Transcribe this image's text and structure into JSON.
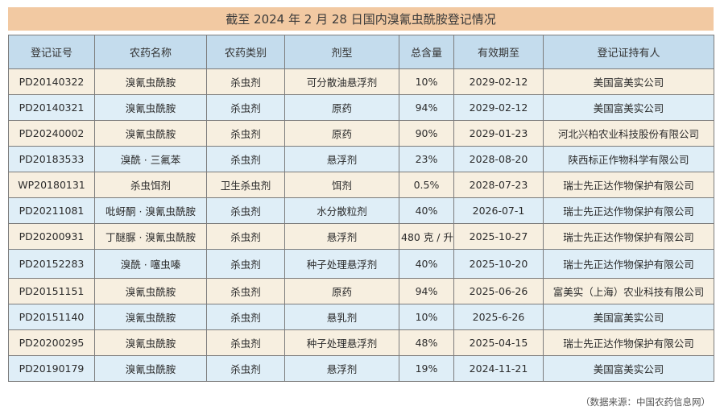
{
  "title": "截至 2024 年 2 月 28 日国内溴氰虫酰胺登记情况",
  "columns": [
    "登记证号",
    "农药名称",
    "农药类别",
    "剂型",
    "总含量",
    "有效期至",
    "登记证持有人"
  ],
  "rows": [
    [
      "PD20140322",
      "溴氰虫酰胺",
      "杀虫剂",
      "可分散油悬浮剂",
      "10%",
      "2029-02-12",
      "美国富美实公司"
    ],
    [
      "PD20140321",
      "溴氰虫酰胺",
      "杀虫剂",
      "原药",
      "94%",
      "2029-02-12",
      "美国富美实公司"
    ],
    [
      "PD20240002",
      "溴氰虫酰胺",
      "杀虫剂",
      "原药",
      "90%",
      "2029-01-23",
      "河北兴柏农业科技股份有限公司"
    ],
    [
      "PD20183533",
      "溴酰 · 三氟苯",
      "杀虫剂",
      "悬浮剂",
      "23%",
      "2028-08-20",
      "陕西标正作物科学有限公司"
    ],
    [
      "WP20180131",
      "杀虫饵剂",
      "卫生杀虫剂",
      "饵剂",
      "0.5%",
      "2028-07-23",
      "瑞士先正达作物保护有限公司"
    ],
    [
      "PD20211081",
      "吡蚜酮 · 溴氰虫酰胺",
      "杀虫剂",
      "水分散粒剂",
      "40%",
      "2026-07-1",
      "瑞士先正达作物保护有限公司"
    ],
    [
      "PD20200931",
      "丁醚脲 · 溴氰虫酰胺",
      "杀虫剂",
      "悬浮剂",
      "480 克 / 升",
      "2025-10-27",
      "瑞士先正达作物保护有限公司"
    ],
    [
      "PD20152283",
      "溴酰 · 噻虫嗪",
      "杀虫剂",
      "种子处理悬浮剂",
      "40%",
      "2025-10-20",
      "瑞士先正达作物保护有限公司"
    ],
    [
      "PD20151151",
      "溴氰虫酰胺",
      "杀虫剂",
      "原药",
      "94%",
      "2025-06-26",
      "富美实（上海）农业科技有限公司"
    ],
    [
      "PD20151140",
      "溴氰虫酰胺",
      "杀虫剂",
      "悬乳剂",
      "10%",
      "2025-6-26",
      "美国富美实公司"
    ],
    [
      "PD20200295",
      "溴氰虫酰胺",
      "杀虫剂",
      "种子处理悬浮剂",
      "48%",
      "2025-04-15",
      "瑞士先正达作物保护有限公司"
    ],
    [
      "PD20190179",
      "溴氰虫酰胺",
      "杀虫剂",
      "悬浮剂",
      "19%",
      "2024-11-21",
      "美国富美实公司"
    ]
  ],
  "source": "（数据来源：中国农药信息网）"
}
